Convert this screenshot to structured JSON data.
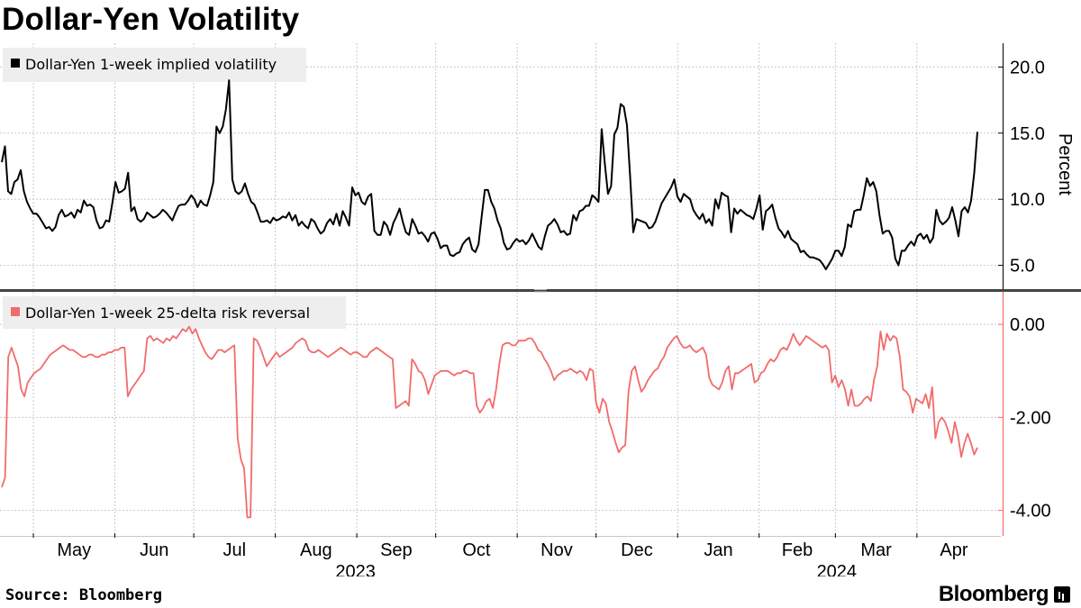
{
  "title": "Dollar-Yen Volatility",
  "source": "Source:  Bloomberg",
  "brand": "Bloomberg",
  "colors": {
    "vol_line": "#000000",
    "rr_line": "#f26b6b",
    "grid": "#c8c8c8",
    "legend_bg": "#eeeeee"
  },
  "chart_data": [
    {
      "type": "line",
      "panel": "top",
      "title": "",
      "legend": "Dollar-Yen 1-week implied volatility",
      "legend_position": "top-left",
      "ylabel": "Percent",
      "yaxis_side": "right",
      "ylim": [
        3.2,
        21.8
      ],
      "yticks": [
        5.0,
        10.0,
        15.0,
        20.0
      ],
      "ytick_labels": [
        "5.0",
        "10.0",
        "15.0",
        "20.0"
      ],
      "grid": true,
      "x_start": "2023-04-19",
      "x_end": "2024-04-24",
      "values": [
        12.8,
        14.0,
        10.6,
        10.4,
        11.3,
        11.5,
        12.2,
        10.6,
        9.8,
        9.3,
        8.9,
        8.9,
        8.6,
        8.2,
        7.8,
        7.9,
        7.6,
        7.9,
        8.8,
        9.2,
        8.7,
        8.8,
        9.0,
        8.6,
        9.2,
        9.0,
        9.9,
        9.5,
        9.6,
        9.4,
        8.4,
        7.8,
        7.9,
        8.4,
        8.3,
        9.7,
        11.3,
        10.5,
        10.6,
        10.8,
        12.0,
        9.1,
        9.4,
        8.5,
        8.3,
        8.5,
        9.0,
        8.8,
        8.6,
        8.7,
        8.9,
        9.2,
        9.0,
        8.7,
        8.4,
        9.0,
        9.5,
        9.6,
        9.6,
        9.9,
        10.3,
        10.0,
        9.4,
        9.9,
        9.6,
        9.5,
        10.3,
        11.3,
        15.5,
        15.0,
        15.5,
        16.8,
        19.0,
        11.5,
        10.6,
        10.4,
        10.6,
        11.2,
        10.4,
        9.8,
        9.6,
        9.0,
        8.3,
        8.3,
        8.4,
        8.2,
        8.6,
        8.4,
        8.5,
        8.7,
        8.6,
        9.0,
        8.4,
        8.8,
        8.0,
        8.3,
        8.0,
        7.8,
        8.5,
        8.3,
        7.8,
        7.4,
        7.6,
        8.2,
        8.5,
        8.1,
        8.9,
        8.0,
        9.1,
        8.6,
        8.0,
        10.9,
        10.3,
        10.5,
        9.8,
        9.6,
        10.2,
        10.4,
        7.6,
        7.3,
        7.3,
        8.3,
        8.0,
        7.3,
        8.2,
        8.7,
        9.3,
        8.3,
        7.5,
        7.3,
        8.5,
        8.0,
        7.4,
        7.5,
        7.2,
        6.8,
        7.4,
        7.5,
        7.0,
        6.3,
        6.5,
        6.5,
        5.8,
        5.7,
        5.9,
        6.0,
        6.6,
        6.9,
        7.1,
        6.2,
        6.0,
        6.6,
        8.7,
        10.7,
        10.7,
        9.8,
        9.3,
        8.4,
        7.8,
        6.7,
        6.2,
        6.3,
        6.7,
        7.0,
        6.8,
        6.9,
        6.6,
        6.9,
        7.4,
        6.9,
        6.4,
        6.2,
        7.2,
        8.0,
        8.2,
        8.5,
        8.1,
        7.5,
        7.6,
        7.3,
        7.4,
        8.8,
        8.4,
        9.1,
        9.2,
        9.5,
        9.5,
        10.3,
        10.1,
        9.8,
        15.3,
        12.7,
        10.4,
        11.0,
        14.9,
        15.4,
        17.2,
        17.0,
        15.6,
        11.7,
        7.5,
        8.5,
        8.4,
        8.3,
        8.2,
        7.8,
        7.9,
        8.3,
        9.0,
        9.7,
        10.1,
        10.5,
        10.9,
        11.5,
        10.2,
        9.8,
        10.4,
        10.2,
        10.0,
        9.2,
        8.8,
        8.5,
        8.9,
        8.2,
        8.5,
        8.0,
        10.0,
        9.3,
        10.5,
        10.3,
        10.2,
        7.5,
        9.3,
        8.9,
        9.2,
        9.0,
        8.8,
        8.7,
        8.5,
        9.3,
        10.3,
        7.7,
        9.1,
        9.3,
        9.6,
        8.6,
        7.8,
        7.5,
        7.1,
        7.6,
        7.0,
        6.8,
        6.6,
        6.0,
        6.1,
        5.8,
        5.6,
        5.6,
        5.5,
        5.4,
        5.1,
        4.7,
        5.1,
        5.5,
        6.1,
        6.1,
        5.7,
        6.4,
        8.1,
        7.9,
        9.1,
        9.2,
        9.2,
        10.3,
        11.6,
        11.0,
        11.3,
        10.6,
        8.8,
        7.4,
        7.6,
        7.6,
        7.1,
        5.5,
        5.0,
        6.1,
        6.1,
        6.5,
        6.8,
        6.5,
        7.2,
        7.4,
        7.0,
        7.3,
        6.7,
        7.1,
        9.2,
        8.4,
        8.1,
        8.3,
        8.6,
        9.4,
        8.4,
        7.2,
        9.1,
        9.4,
        9.0,
        9.9,
        12.0,
        15.1
      ]
    },
    {
      "type": "line",
      "panel": "bottom",
      "title": "",
      "legend": "Dollar-Yen 1-week 25-delta risk reversal",
      "legend_position": "top-left",
      "ylabel": "",
      "yaxis_side": "right",
      "ylim": [
        -4.55,
        0.7
      ],
      "yticks": [
        -4.0,
        -2.0,
        0.0
      ],
      "ytick_labels": [
        "-4.00",
        "-2.00",
        "0.00"
      ],
      "grid": true,
      "x_start": "2023-04-19",
      "x_end": "2024-04-24",
      "values": [
        -3.5,
        -3.3,
        -0.7,
        -0.5,
        -0.7,
        -0.9,
        -1.4,
        -1.55,
        -1.25,
        -1.15,
        -1.05,
        -1.0,
        -0.95,
        -0.85,
        -0.75,
        -0.65,
        -0.6,
        -0.55,
        -0.5,
        -0.45,
        -0.5,
        -0.55,
        -0.55,
        -0.6,
        -0.65,
        -0.7,
        -0.7,
        -0.65,
        -0.65,
        -0.7,
        -0.7,
        -0.65,
        -0.65,
        -0.6,
        -0.6,
        -0.55,
        -0.55,
        -0.5,
        -0.5,
        -1.55,
        -1.4,
        -1.3,
        -1.2,
        -1.1,
        -1.0,
        -0.3,
        -0.25,
        -0.35,
        -0.3,
        -0.35,
        -0.4,
        -0.3,
        -0.35,
        -0.25,
        -0.3,
        -0.2,
        -0.1,
        -0.15,
        -0.05,
        -0.2,
        -0.1,
        -0.3,
        -0.45,
        -0.6,
        -0.7,
        -0.75,
        -0.65,
        -0.55,
        -0.55,
        -0.6,
        -0.55,
        -0.5,
        -0.45,
        -2.45,
        -2.9,
        -3.1,
        -4.15,
        -4.15,
        -0.3,
        -0.35,
        -0.5,
        -0.7,
        -0.9,
        -0.8,
        -0.7,
        -0.6,
        -0.7,
        -0.65,
        -0.6,
        -0.55,
        -0.5,
        -0.4,
        -0.35,
        -0.3,
        -0.35,
        -0.55,
        -0.6,
        -0.6,
        -0.55,
        -0.6,
        -0.65,
        -0.7,
        -0.65,
        -0.6,
        -0.55,
        -0.5,
        -0.55,
        -0.6,
        -0.65,
        -0.6,
        -0.6,
        -0.65,
        -0.7,
        -0.7,
        -0.6,
        -0.55,
        -0.5,
        -0.55,
        -0.6,
        -0.65,
        -0.7,
        -0.75,
        -1.8,
        -1.75,
        -1.7,
        -1.65,
        -1.75,
        -0.75,
        -0.85,
        -1.0,
        -1.05,
        -1.2,
        -1.5,
        -1.3,
        -1.1,
        -1.05,
        -1.0,
        -1.0,
        -1.0,
        -1.05,
        -1.1,
        -1.05,
        -1.05,
        -1.0,
        -1.0,
        -1.05,
        -1.05,
        -1.75,
        -1.9,
        -1.8,
        -1.65,
        -1.6,
        -1.8,
        -1.4,
        -0.85,
        -0.45,
        -0.4,
        -0.4,
        -0.45,
        -0.45,
        -0.35,
        -0.35,
        -0.35,
        -0.3,
        -0.3,
        -0.4,
        -0.55,
        -0.6,
        -0.75,
        -0.85,
        -1.0,
        -1.2,
        -1.1,
        -1.05,
        -1.0,
        -1.0,
        -0.95,
        -1.0,
        -1.05,
        -1.0,
        -1.05,
        -1.2,
        -0.95,
        -1.0,
        -1.7,
        -1.9,
        -1.6,
        -1.7,
        -2.1,
        -2.3,
        -2.55,
        -2.75,
        -2.65,
        -2.6,
        -1.45,
        -1.0,
        -0.9,
        -1.2,
        -1.45,
        -1.35,
        -1.2,
        -1.1,
        -1.0,
        -0.95,
        -0.8,
        -0.7,
        -0.5,
        -0.4,
        -0.3,
        -0.25,
        -0.4,
        -0.5,
        -0.5,
        -0.45,
        -0.55,
        -0.6,
        -0.55,
        -0.5,
        -0.65,
        -1.15,
        -1.3,
        -1.35,
        -1.4,
        -1.25,
        -1.0,
        -0.9,
        -1.4,
        -1.05,
        -1.05,
        -1.0,
        -0.95,
        -0.9,
        -0.85,
        -1.25,
        -1.2,
        -1.05,
        -1.0,
        -0.85,
        -0.75,
        -0.8,
        -0.7,
        -0.55,
        -0.5,
        -0.55,
        -0.4,
        -0.2,
        -0.35,
        -0.45,
        -0.35,
        -0.25,
        -0.3,
        -0.35,
        -0.4,
        -0.45,
        -0.5,
        -0.45,
        -0.55,
        -1.25,
        -1.1,
        -1.35,
        -1.2,
        -1.4,
        -1.75,
        -1.4,
        -1.75,
        -1.75,
        -1.7,
        -1.6,
        -1.55,
        -1.65,
        -1.2,
        -0.9,
        -0.15,
        -0.55,
        -0.2,
        -0.35,
        -0.25,
        -0.3,
        -0.7,
        -1.4,
        -1.45,
        -1.55,
        -1.9,
        -1.6,
        -1.65,
        -1.7,
        -1.5,
        -1.8,
        -1.35,
        -2.45,
        -2.1,
        -2.0,
        -2.1,
        -2.3,
        -2.55,
        -2.1,
        -2.4,
        -2.85,
        -2.55,
        -2.35,
        -2.55,
        -2.8,
        -2.65
      ]
    }
  ],
  "x_axis": {
    "month_labels": [
      "May",
      "Jun",
      "Jul",
      "Aug",
      "Sep",
      "Oct",
      "Nov",
      "Dec",
      "Jan",
      "Feb",
      "Mar",
      "Apr"
    ],
    "year_labels": [
      "2023",
      "2024"
    ]
  }
}
